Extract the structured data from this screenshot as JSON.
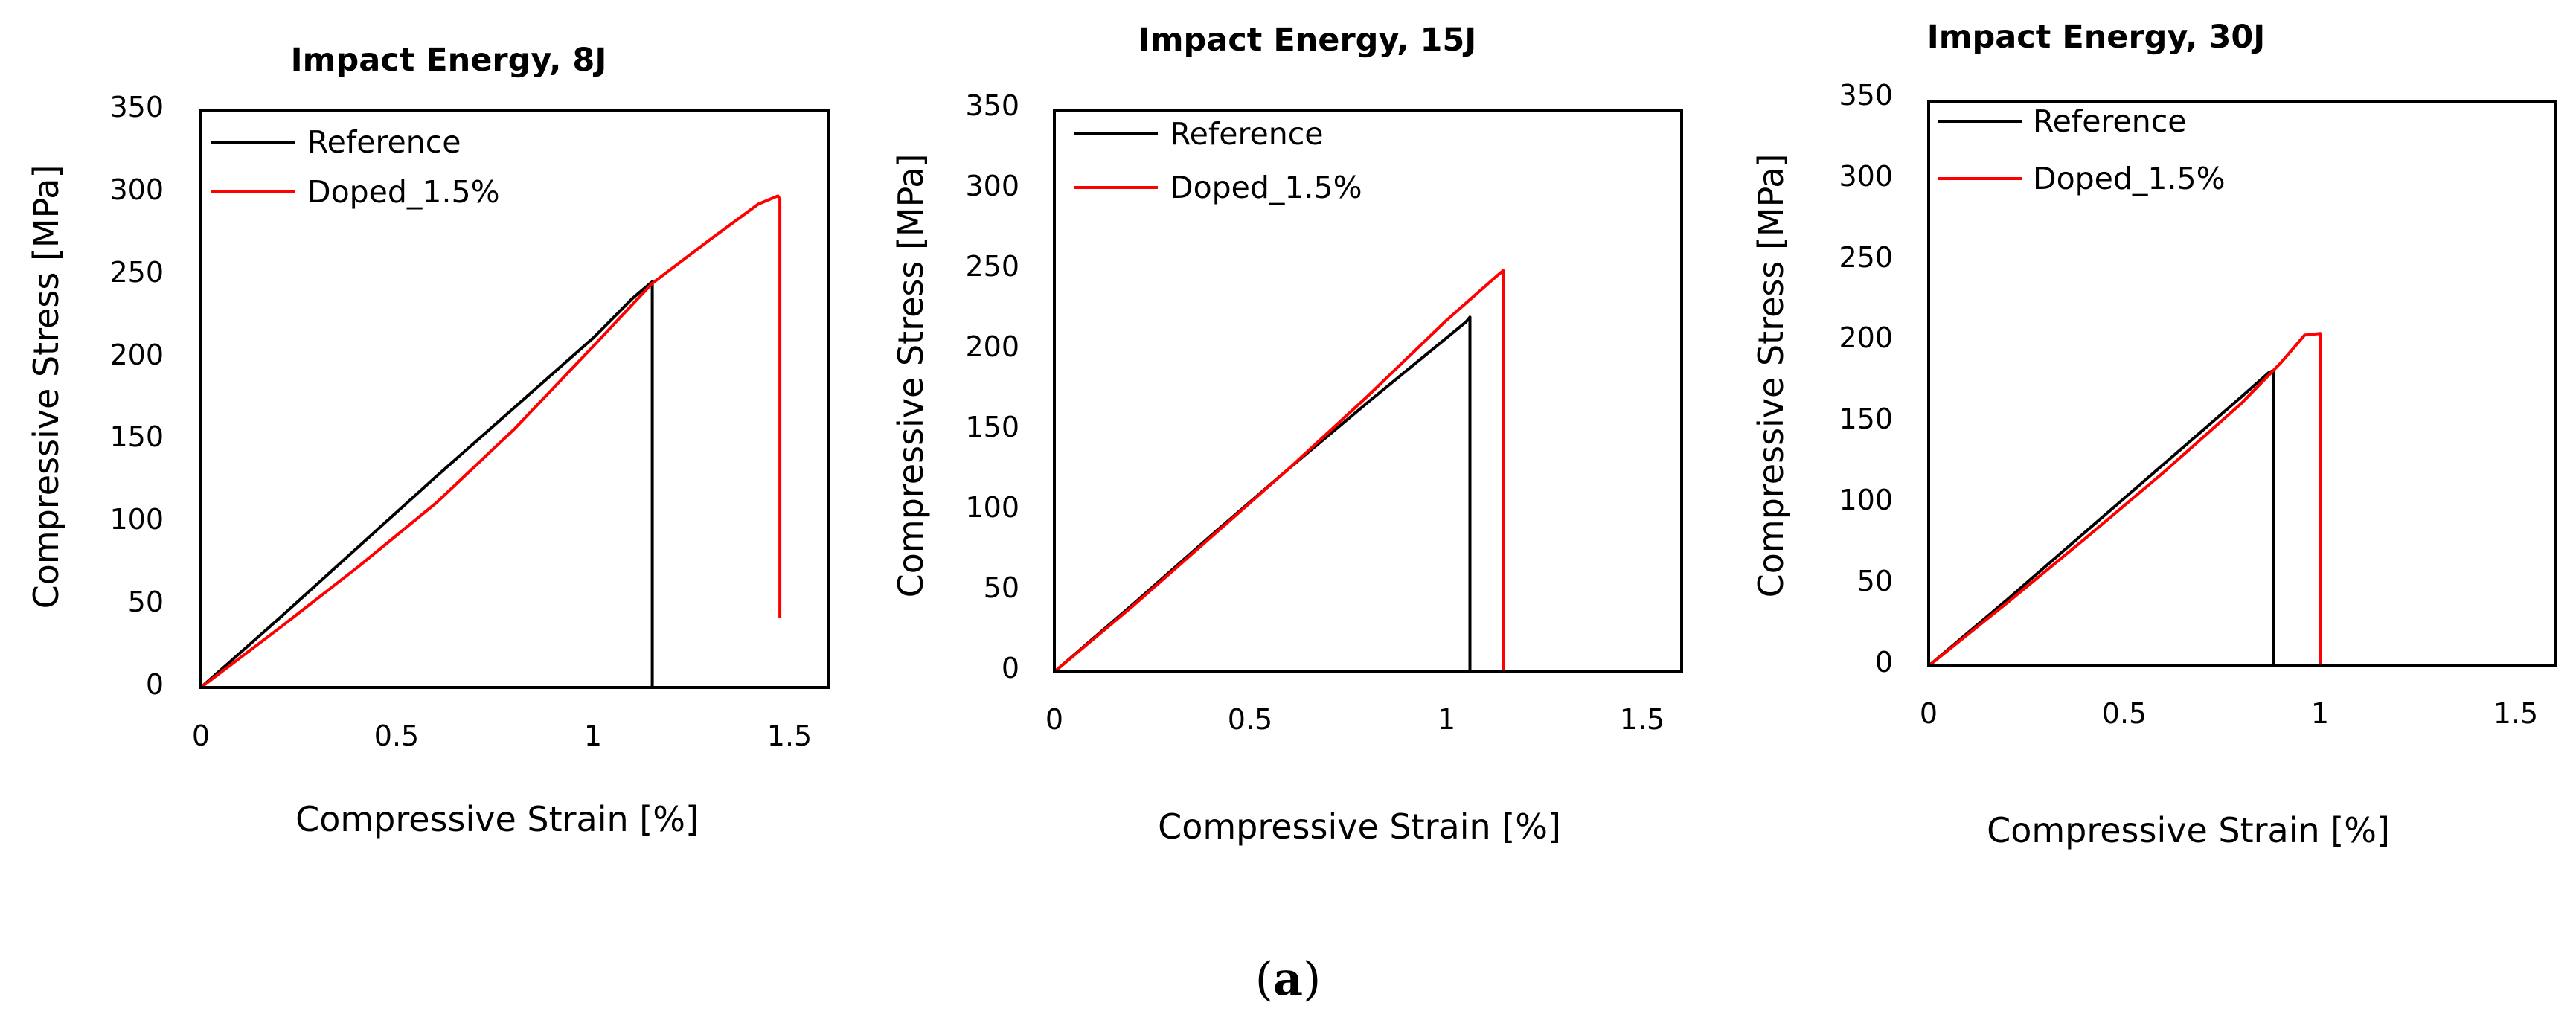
{
  "caption": {
    "open": "(",
    "letter": "a",
    "close": ")"
  },
  "colors": {
    "reference": "#000000",
    "doped": "#ff0000",
    "frame": "#000000"
  },
  "chart_data": [
    {
      "type": "line",
      "title": "Impact Energy, 8J",
      "xlabel": "Compressive Strain [%]",
      "ylabel": "Compressive Stress [MPa]",
      "xlim": [
        0,
        1.6
      ],
      "ylim": [
        0,
        350
      ],
      "xticks": [
        "0",
        "0.5",
        "1",
        "1.5"
      ],
      "yticks": [
        "0",
        "50",
        "100",
        "150",
        "200",
        "250",
        "300",
        "350"
      ],
      "legend_position": "top-left",
      "series": [
        {
          "name": "Reference",
          "color": "#000000",
          "x": [
            0,
            0.2,
            0.4,
            0.6,
            0.8,
            1.0,
            1.1,
            1.15,
            1.15
          ],
          "y": [
            0,
            42,
            85,
            128,
            170,
            212,
            236,
            246,
            0
          ]
        },
        {
          "name": "Doped_1.5%",
          "color": "#ff0000",
          "x": [
            0,
            0.2,
            0.4,
            0.6,
            0.8,
            1.0,
            1.15,
            1.3,
            1.42,
            1.47,
            1.475,
            1.475
          ],
          "y": [
            0,
            36,
            73,
            112,
            157,
            207,
            245,
            272,
            293,
            298,
            296,
            42
          ]
        }
      ]
    },
    {
      "type": "line",
      "title": "Impact Energy, 15J",
      "xlabel": "Compressive Strain [%]",
      "ylabel": "Compressive Stress [MPa]",
      "xlim": [
        0,
        1.6
      ],
      "ylim": [
        0,
        350
      ],
      "xticks": [
        "0",
        "0.5",
        "1",
        "1.5"
      ],
      "yticks": [
        "0",
        "50",
        "100",
        "150",
        "200",
        "250",
        "300",
        "350"
      ],
      "legend_position": "top-left",
      "series": [
        {
          "name": "Reference",
          "color": "#000000",
          "x": [
            0,
            0.2,
            0.4,
            0.6,
            0.8,
            0.95,
            1.05,
            1.06,
            1.06
          ],
          "y": [
            0,
            42,
            85,
            127,
            168,
            198,
            218,
            221,
            0
          ]
        },
        {
          "name": "Doped_1.5%",
          "color": "#ff0000",
          "x": [
            0,
            0.2,
            0.4,
            0.6,
            0.8,
            1.0,
            1.13,
            1.145,
            1.145
          ],
          "y": [
            0,
            41,
            84,
            127,
            172,
            219,
            247,
            250,
            0
          ]
        }
      ]
    },
    {
      "type": "line",
      "title": "Impact Energy, 30J",
      "xlabel": "Compressive Strain [%]",
      "ylabel": "Compressive Stress [MPa]",
      "xlim": [
        0,
        1.6
      ],
      "ylim": [
        0,
        350
      ],
      "xticks": [
        "0",
        "0.5",
        "1",
        "1.5"
      ],
      "yticks": [
        "0",
        "50",
        "100",
        "150",
        "200",
        "250",
        "300",
        "350"
      ],
      "legend_position": "top-left",
      "series": [
        {
          "name": "Reference",
          "color": "#000000",
          "x": [
            0,
            0.2,
            0.4,
            0.6,
            0.8,
            0.87,
            0.88,
            0.88
          ],
          "y": [
            0,
            41,
            83,
            125,
            167,
            182,
            183,
            0
          ]
        },
        {
          "name": "Doped_1.5%",
          "color": "#ff0000",
          "x": [
            0,
            0.2,
            0.4,
            0.6,
            0.8,
            0.9,
            0.96,
            1.0,
            1.0
          ],
          "y": [
            0,
            39,
            79,
            120,
            163,
            188,
            205,
            206,
            0
          ]
        }
      ]
    }
  ]
}
